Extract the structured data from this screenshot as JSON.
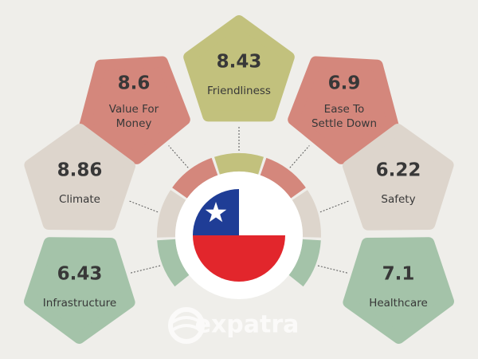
{
  "items": [
    {
      "score": 8.43,
      "label": [
        "Friendliness"
      ]
    },
    {
      "score": 8.6,
      "label": [
        "Value For",
        "Money"
      ]
    },
    {
      "score": 6.9,
      "label": [
        "Ease To",
        "Settle Down"
      ]
    },
    {
      "score": 8.86,
      "label": [
        "Climate"
      ]
    },
    {
      "score": 6.22,
      "label": [
        "Safety"
      ]
    },
    {
      "score": 6.43,
      "label": [
        "Infrastructure"
      ]
    },
    {
      "score": 7.1,
      "label": [
        "Healthcare"
      ]
    }
  ],
  "logo": "expatra"
}
